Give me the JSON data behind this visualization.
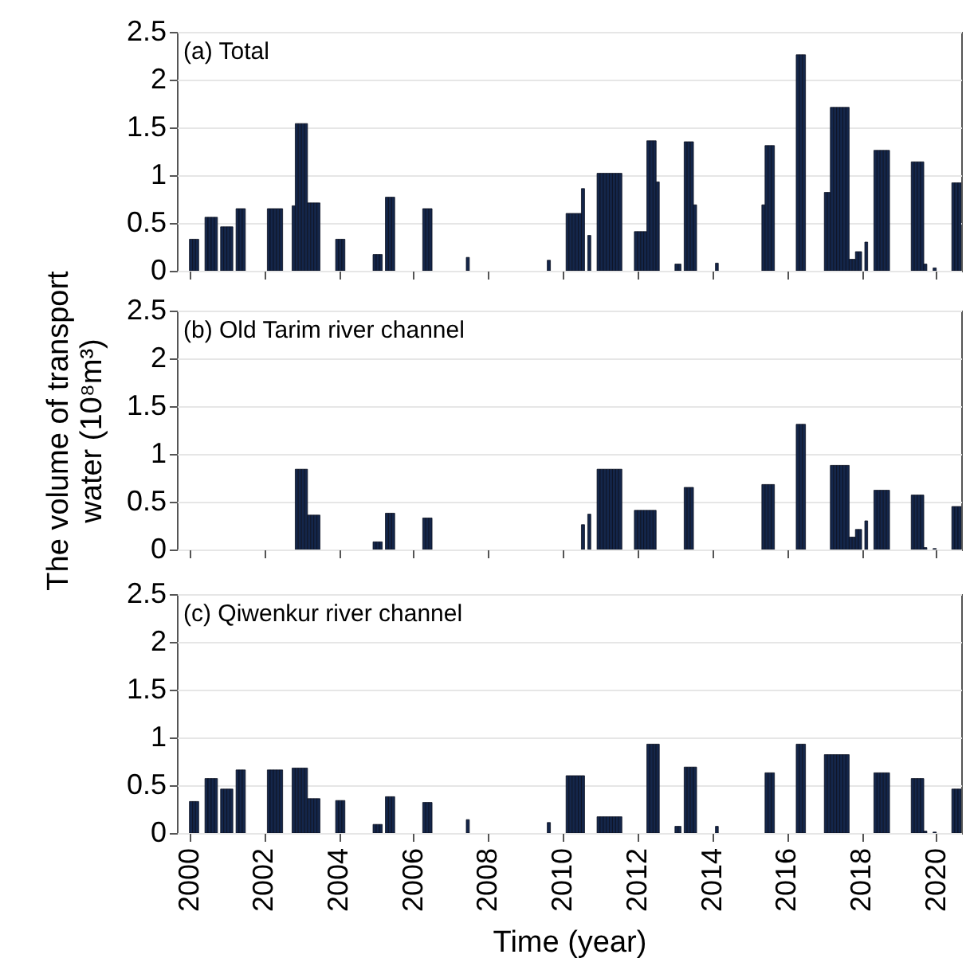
{
  "chart_data": [
    {
      "type": "bar",
      "title": "(a) Total",
      "color": "#14264a",
      "grid": "y",
      "tick_labels": "y",
      "xlim": [
        "1999-09",
        "2020-09"
      ],
      "xticks": [
        "2000",
        "2002",
        "2004",
        "2006",
        "2008",
        "2010",
        "2012",
        "2014",
        "2016",
        "2018",
        "2020"
      ],
      "ylim": [
        0,
        2.5
      ],
      "yticks": [
        0,
        0.5,
        1,
        1.5,
        2,
        2.5
      ],
      "x": [
        "2000-01",
        "2000-02",
        "2000-03",
        "2000-06",
        "2000-07",
        "2000-08",
        "2000-09",
        "2000-11",
        "2000-12",
        "2001-01",
        "2001-02",
        "2001-04",
        "2001-05",
        "2001-06",
        "2002-02",
        "2002-03",
        "2002-04",
        "2002-05",
        "2002-06",
        "2002-10",
        "2002-11",
        "2002-12",
        "2003-01",
        "2003-02",
        "2003-03",
        "2003-04",
        "2003-05",
        "2003-06",
        "2003-12",
        "2004-01",
        "2004-02",
        "2004-12",
        "2005-01",
        "2005-02",
        "2005-04",
        "2005-05",
        "2005-06",
        "2006-04",
        "2006-05",
        "2006-06",
        "2007-06",
        "2009-08",
        "2010-02",
        "2010-03",
        "2010-04",
        "2010-05",
        "2010-06",
        "2010-07",
        "2010-09",
        "2010-12",
        "2011-01",
        "2011-02",
        "2011-03",
        "2011-04",
        "2011-05",
        "2011-06",
        "2011-07",
        "2011-12",
        "2012-01",
        "2012-02",
        "2012-03",
        "2012-04",
        "2012-05",
        "2012-06",
        "2012-07",
        "2013-01",
        "2013-02",
        "2013-04",
        "2013-05",
        "2013-06",
        "2013-07",
        "2014-02",
        "2015-05",
        "2015-06",
        "2015-07",
        "2015-08",
        "2016-04",
        "2016-05",
        "2016-06",
        "2017-01",
        "2017-02",
        "2017-03",
        "2017-04",
        "2017-05",
        "2017-06",
        "2017-07",
        "2017-08",
        "2017-09",
        "2017-10",
        "2017-11",
        "2017-12",
        "2018-02",
        "2018-05",
        "2018-06",
        "2018-07",
        "2018-08",
        "2018-09",
        "2019-05",
        "2019-06",
        "2019-07",
        "2019-08",
        "2019-09",
        "2019-12",
        "2020-06",
        "2020-07",
        "2020-08"
      ],
      "values": [
        0.33,
        0.33,
        0.33,
        0.56,
        0.56,
        0.56,
        0.56,
        0.46,
        0.46,
        0.46,
        0.46,
        0.65,
        0.65,
        0.65,
        0.65,
        0.65,
        0.65,
        0.65,
        0.65,
        0.68,
        1.54,
        1.54,
        1.54,
        1.54,
        0.71,
        0.71,
        0.71,
        0.71,
        0.33,
        0.33,
        0.33,
        0.17,
        0.17,
        0.17,
        0.77,
        0.77,
        0.77,
        0.65,
        0.65,
        0.65,
        0.14,
        0.11,
        0.6,
        0.6,
        0.6,
        0.6,
        0.6,
        0.86,
        0.37,
        1.02,
        1.02,
        1.02,
        1.02,
        1.02,
        1.02,
        1.02,
        1.02,
        0.41,
        0.41,
        0.41,
        0.41,
        1.36,
        1.36,
        1.36,
        0.93,
        0.07,
        0.07,
        1.35,
        1.35,
        1.35,
        0.69,
        0.08,
        0.69,
        1.31,
        1.31,
        1.31,
        2.26,
        2.26,
        2.26,
        0.82,
        0.82,
        1.71,
        1.71,
        1.71,
        1.71,
        1.71,
        1.71,
        0.12,
        0.12,
        0.2,
        0.2,
        0.3,
        1.26,
        1.26,
        1.26,
        1.26,
        1.26,
        1.14,
        1.14,
        1.14,
        1.14,
        0.07,
        0.03,
        0.92,
        0.92,
        0.92
      ]
    },
    {
      "type": "bar",
      "title": "(b) Old Tarim river channel",
      "ylabel": "The volume of transport water (10⁸m³)",
      "color": "#14264a",
      "grid": "y",
      "tick_labels": "y",
      "xlim": [
        "1999-09",
        "2020-09"
      ],
      "xticks": [
        "2000",
        "2002",
        "2004",
        "2006",
        "2008",
        "2010",
        "2012",
        "2014",
        "2016",
        "2018",
        "2020"
      ],
      "ylim": [
        0,
        2.5
      ],
      "yticks": [
        0,
        0.5,
        1,
        1.5,
        2,
        2.5
      ],
      "x": [
        "2002-11",
        "2002-12",
        "2003-01",
        "2003-02",
        "2003-03",
        "2003-04",
        "2003-05",
        "2003-06",
        "2004-12",
        "2005-01",
        "2005-02",
        "2005-04",
        "2005-05",
        "2005-06",
        "2006-04",
        "2006-05",
        "2006-06",
        "2010-07",
        "2010-09",
        "2010-12",
        "2011-01",
        "2011-02",
        "2011-03",
        "2011-04",
        "2011-05",
        "2011-06",
        "2011-07",
        "2011-12",
        "2012-01",
        "2012-02",
        "2012-03",
        "2012-04",
        "2012-05",
        "2012-06",
        "2013-04",
        "2013-05",
        "2013-06",
        "2015-05",
        "2015-06",
        "2015-07",
        "2015-08",
        "2016-04",
        "2016-05",
        "2016-06",
        "2017-03",
        "2017-04",
        "2017-05",
        "2017-06",
        "2017-07",
        "2017-08",
        "2017-09",
        "2017-10",
        "2017-11",
        "2017-12",
        "2018-02",
        "2018-05",
        "2018-06",
        "2018-07",
        "2018-08",
        "2018-09",
        "2019-05",
        "2019-06",
        "2019-07",
        "2019-08",
        "2019-09",
        "2019-12",
        "2020-06",
        "2020-07",
        "2020-08"
      ],
      "values": [
        0.84,
        0.84,
        0.84,
        0.84,
        0.36,
        0.36,
        0.36,
        0.36,
        0.08,
        0.08,
        0.08,
        0.38,
        0.38,
        0.38,
        0.33,
        0.33,
        0.33,
        0.26,
        0.37,
        0.84,
        0.84,
        0.84,
        0.84,
        0.84,
        0.84,
        0.84,
        0.84,
        0.41,
        0.41,
        0.41,
        0.41,
        0.41,
        0.41,
        0.41,
        0.65,
        0.65,
        0.65,
        0.68,
        0.68,
        0.68,
        0.68,
        1.31,
        1.31,
        1.31,
        0.88,
        0.88,
        0.88,
        0.88,
        0.88,
        0.88,
        0.13,
        0.13,
        0.21,
        0.21,
        0.3,
        0.62,
        0.62,
        0.62,
        0.62,
        0.62,
        0.57,
        0.57,
        0.57,
        0.57,
        0.02,
        0.01,
        0.45,
        0.45,
        0.45
      ]
    },
    {
      "type": "bar",
      "title": "(c) Qiwenkur river channel",
      "xlabel": "Time (year)",
      "color": "#14264a",
      "grid": "y",
      "xlim": [
        "1999-09",
        "2020-09"
      ],
      "xticks": [
        "2000",
        "2002",
        "2004",
        "2006",
        "2008",
        "2010",
        "2012",
        "2014",
        "2016",
        "2018",
        "2020"
      ],
      "ylim": [
        0,
        2.5
      ],
      "yticks": [
        0,
        0.5,
        1,
        1.5,
        2,
        2.5
      ],
      "x": [
        "2000-01",
        "2000-02",
        "2000-03",
        "2000-06",
        "2000-07",
        "2000-08",
        "2000-09",
        "2000-11",
        "2000-12",
        "2001-01",
        "2001-02",
        "2001-04",
        "2001-05",
        "2001-06",
        "2002-02",
        "2002-03",
        "2002-04",
        "2002-05",
        "2002-06",
        "2002-10",
        "2002-11",
        "2002-12",
        "2003-01",
        "2003-02",
        "2003-03",
        "2003-04",
        "2003-05",
        "2003-06",
        "2003-12",
        "2004-01",
        "2004-02",
        "2004-12",
        "2005-01",
        "2005-02",
        "2005-04",
        "2005-05",
        "2005-06",
        "2006-04",
        "2006-05",
        "2006-06",
        "2007-06",
        "2009-08",
        "2010-02",
        "2010-03",
        "2010-04",
        "2010-05",
        "2010-06",
        "2010-07",
        "2010-12",
        "2011-01",
        "2011-02",
        "2011-03",
        "2011-04",
        "2011-05",
        "2011-06",
        "2011-07",
        "2012-04",
        "2012-05",
        "2012-06",
        "2012-07",
        "2013-01",
        "2013-02",
        "2013-04",
        "2013-05",
        "2013-06",
        "2013-07",
        "2014-02",
        "2015-06",
        "2015-07",
        "2015-08",
        "2016-04",
        "2016-05",
        "2016-06",
        "2017-01",
        "2017-02",
        "2017-03",
        "2017-04",
        "2017-05",
        "2017-06",
        "2017-07",
        "2017-08",
        "2018-05",
        "2018-06",
        "2018-07",
        "2018-08",
        "2018-09",
        "2019-05",
        "2019-06",
        "2019-07",
        "2019-08",
        "2019-09",
        "2019-12",
        "2020-06",
        "2020-07",
        "2020-08"
      ],
      "values": [
        0.33,
        0.33,
        0.33,
        0.57,
        0.57,
        0.57,
        0.57,
        0.46,
        0.46,
        0.46,
        0.46,
        0.66,
        0.66,
        0.66,
        0.66,
        0.66,
        0.66,
        0.66,
        0.66,
        0.68,
        0.68,
        0.68,
        0.68,
        0.68,
        0.36,
        0.36,
        0.36,
        0.36,
        0.34,
        0.34,
        0.34,
        0.09,
        0.09,
        0.09,
        0.38,
        0.38,
        0.38,
        0.32,
        0.32,
        0.32,
        0.14,
        0.11,
        0.6,
        0.6,
        0.6,
        0.6,
        0.6,
        0.6,
        0.17,
        0.17,
        0.17,
        0.17,
        0.17,
        0.17,
        0.17,
        0.17,
        0.93,
        0.93,
        0.93,
        0.93,
        0.07,
        0.07,
        0.69,
        0.69,
        0.69,
        0.69,
        0.07,
        0.63,
        0.63,
        0.63,
        0.93,
        0.93,
        0.93,
        0.82,
        0.82,
        0.82,
        0.82,
        0.82,
        0.82,
        0.82,
        0.82,
        0.63,
        0.63,
        0.63,
        0.63,
        0.63,
        0.57,
        0.57,
        0.57,
        0.57,
        0.02,
        0.01,
        0.46,
        0.46,
        0.46
      ]
    }
  ]
}
